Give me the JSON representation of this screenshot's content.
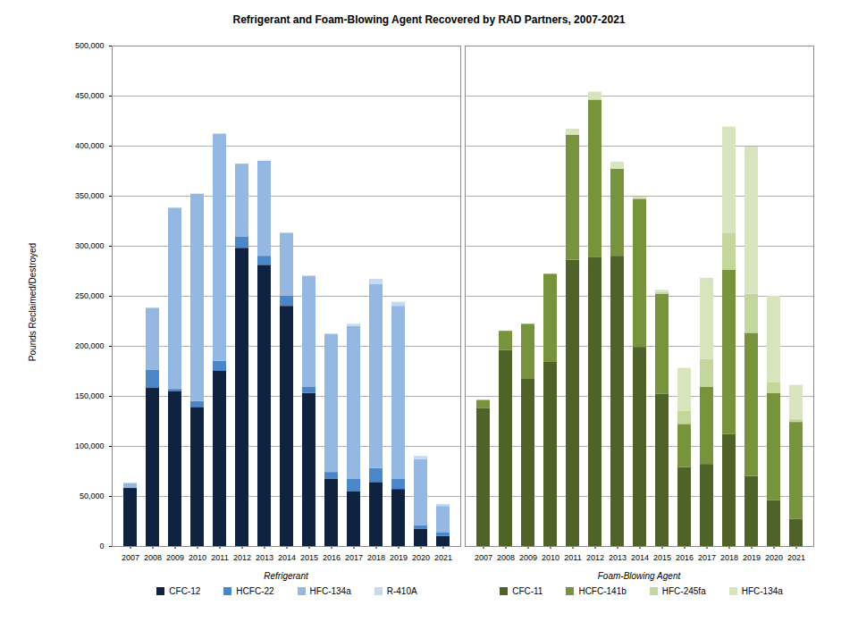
{
  "chart_data": [
    {
      "type": "bar",
      "stacked": true,
      "grid": true,
      "tick_labels": true,
      "title": "Refrigerant and Foam-Blowing Agent Recovered by RAD Partners, 2007-2021",
      "y_label": "Pounds Reclaimed/Destroyed",
      "x_label": "Refrigerant",
      "categories": [
        "2007",
        "2008",
        "2009",
        "2010",
        "2011",
        "2012",
        "2013",
        "2014",
        "2015",
        "2016",
        "2017",
        "2018",
        "2019",
        "2020",
        "2021"
      ],
      "ylim": [
        0,
        500000
      ],
      "yticks": [
        0,
        {
          "value": 50000,
          "label": "50,000"
        },
        {
          "value": 100000,
          "label": "100,000"
        },
        {
          "value": 150000,
          "label": "150,000"
        },
        {
          "value": 200000,
          "label": "200,000"
        },
        {
          "value": 250000,
          "label": "250,000"
        },
        {
          "value": 300000,
          "label": "300,000"
        },
        {
          "value": 350000,
          "label": "350,000"
        },
        {
          "value": 400000,
          "label": "400,000"
        },
        {
          "value": 450000,
          "label": "450,000"
        },
        {
          "value": 500000,
          "label": "500,000"
        }
      ],
      "series": [
        {
          "name": "CFC-12",
          "color": "#0f2340",
          "values": [
            58000,
            158000,
            155000,
            139000,
            175000,
            298000,
            281000,
            240000,
            153000,
            67000,
            55000,
            64000,
            57000,
            17000,
            10000
          ]
        },
        {
          "name": "HCFC-22",
          "color": "#4a86c8",
          "values": [
            0,
            18000,
            2000,
            6000,
            10000,
            11000,
            9000,
            10000,
            6000,
            7000,
            12000,
            14000,
            10000,
            4000,
            4000
          ]
        },
        {
          "name": "HFC-134a",
          "color": "#95b8e3",
          "values": [
            5000,
            62000,
            181000,
            207000,
            227000,
            73000,
            95000,
            63000,
            111000,
            138000,
            153000,
            184000,
            173000,
            66000,
            26000
          ]
        },
        {
          "name": "R-410A",
          "color": "#c6d9f0",
          "values": [
            0,
            0,
            0,
            0,
            0,
            0,
            0,
            0,
            0,
            0,
            2000,
            5000,
            4000,
            3000,
            2000
          ]
        }
      ]
    },
    {
      "type": "bar",
      "stacked": true,
      "grid": true,
      "tick_labels": "x",
      "x_label": "Foam-Blowing Agent",
      "categories": [
        "2007",
        "2008",
        "2009",
        "2010",
        "2011",
        "2012",
        "2013",
        "2014",
        "2015",
        "2016",
        "2017",
        "2018",
        "2019",
        "2020",
        "2021"
      ],
      "ylim": [
        0,
        500000
      ],
      "yticks": [
        0,
        50000,
        100000,
        150000,
        200000,
        250000,
        300000,
        350000,
        400000,
        450000,
        500000
      ],
      "series": [
        {
          "name": "CFC-11",
          "color": "#4f6228",
          "values": [
            138000,
            196000,
            167000,
            184000,
            286000,
            289000,
            290000,
            199000,
            152000,
            79000,
            82000,
            112000,
            70000,
            46000,
            27000
          ]
        },
        {
          "name": "HCFC-141b",
          "color": "#77933c",
          "values": [
            8000,
            19000,
            55000,
            88000,
            125000,
            157000,
            87000,
            148000,
            100000,
            43000,
            77000,
            164000,
            143000,
            107000,
            97000
          ]
        },
        {
          "name": "HFC-245fa",
          "color": "#c3d69b",
          "values": [
            0,
            0,
            0,
            0,
            0,
            0,
            0,
            0,
            2000,
            13000,
            28000,
            37000,
            39000,
            11000,
            3000
          ]
        },
        {
          "name": "HFC-134a",
          "color": "#d7e4bd",
          "values": [
            0,
            0,
            0,
            0,
            6000,
            8000,
            7000,
            2000,
            2000,
            43000,
            81000,
            106000,
            147000,
            86000,
            34000
          ]
        }
      ]
    }
  ]
}
